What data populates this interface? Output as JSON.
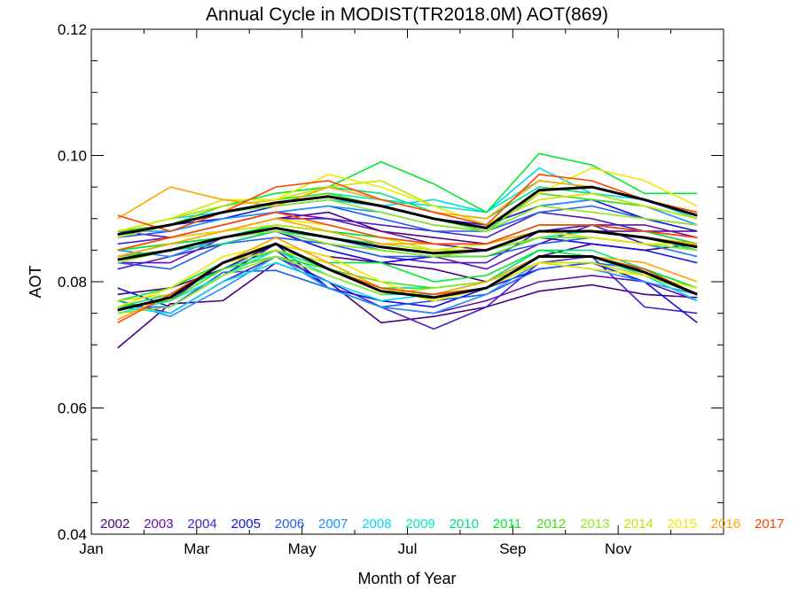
{
  "chart_data": {
    "type": "line",
    "title": "Annual Cycle in MODIST(TR2018.0M) AOT(869)",
    "xlabel": "Month of Year",
    "ylabel": "AOT",
    "xlim": [
      1,
      13
    ],
    "ylim": [
      0.04,
      0.12
    ],
    "x": [
      1.5,
      2.5,
      3.5,
      4.5,
      5.5,
      6.5,
      7.5,
      8.5,
      9.5,
      10.5,
      11.5,
      12.5
    ],
    "x_tick_labels": [
      {
        "x": 1,
        "label": "Jan"
      },
      {
        "x": 3,
        "label": "Mar"
      },
      {
        "x": 5,
        "label": "May"
      },
      {
        "x": 7,
        "label": "Jul"
      },
      {
        "x": 9,
        "label": "Sep"
      },
      {
        "x": 11,
        "label": "Nov"
      }
    ],
    "y_ticks": [
      0.04,
      0.06,
      0.08,
      0.1,
      0.12
    ],
    "y_tick_labels": [
      "0.04",
      "0.06",
      "0.08",
      "0.10",
      "0.12"
    ],
    "grid": false,
    "legend_position": "bottom",
    "series": [
      {
        "name": "2002",
        "color": "#4b0082",
        "lines": [
          [
            0.0695,
            0.0765,
            0.077,
            0.083,
            0.08,
            0.0735,
            0.0745,
            0.076,
            0.0785,
            0.0795,
            0.078,
            0.0775
          ],
          [
            0.078,
            0.079,
            0.082,
            0.086,
            0.084,
            0.083,
            0.082,
            0.08,
            0.084,
            0.086,
            0.085,
            0.086
          ],
          [
            0.085,
            0.087,
            0.088,
            0.09,
            0.091,
            0.088,
            0.087,
            0.086,
            0.088,
            0.088,
            0.088,
            0.088
          ]
        ]
      },
      {
        "name": "2003",
        "color": "#6a0dad",
        "lines": [
          [
            0.076,
            0.077,
            0.083,
            0.085,
            0.079,
            0.076,
            0.075,
            0.077,
            0.08,
            0.081,
            0.08,
            0.077
          ],
          [
            0.083,
            0.083,
            0.087,
            0.088,
            0.085,
            0.083,
            0.084,
            0.082,
            0.086,
            0.089,
            0.088,
            0.086
          ],
          [
            0.088,
            0.087,
            0.089,
            0.091,
            0.09,
            0.088,
            0.086,
            0.085,
            0.088,
            0.089,
            0.089,
            0.087
          ]
        ]
      },
      {
        "name": "2004",
        "color": "#4b1fc8",
        "lines": [
          [
            0.077,
            0.075,
            0.08,
            0.084,
            0.08,
            0.076,
            0.0725,
            0.076,
            0.083,
            0.084,
            0.076,
            0.075
          ],
          [
            0.082,
            0.084,
            0.086,
            0.088,
            0.086,
            0.084,
            0.083,
            0.083,
            0.088,
            0.089,
            0.086,
            0.084
          ],
          [
            0.086,
            0.087,
            0.088,
            0.09,
            0.09,
            0.089,
            0.088,
            0.087,
            0.091,
            0.09,
            0.088,
            0.087
          ]
        ]
      },
      {
        "name": "2005",
        "color": "#1010e0",
        "lines": [
          [
            0.079,
            0.076,
            0.081,
            0.086,
            0.079,
            0.077,
            0.076,
            0.079,
            0.082,
            0.083,
            0.08,
            0.0735
          ],
          [
            0.084,
            0.085,
            0.086,
            0.088,
            0.085,
            0.083,
            0.084,
            0.085,
            0.087,
            0.086,
            0.085,
            0.083
          ],
          [
            0.088,
            0.089,
            0.09,
            0.092,
            0.093,
            0.092,
            0.09,
            0.089,
            0.092,
            0.093,
            0.09,
            0.088
          ]
        ]
      },
      {
        "name": "2006",
        "color": "#1e5ef0",
        "lines": [
          [
            0.076,
            0.076,
            0.0815,
            0.0818,
            0.079,
            0.076,
            0.077,
            0.078,
            0.082,
            0.083,
            0.082,
            0.079
          ],
          [
            0.083,
            0.082,
            0.086,
            0.087,
            0.086,
            0.084,
            0.084,
            0.084,
            0.086,
            0.087,
            0.086,
            0.085
          ],
          [
            0.087,
            0.088,
            0.09,
            0.091,
            0.092,
            0.09,
            0.088,
            0.088,
            0.091,
            0.092,
            0.09,
            0.089
          ]
        ]
      },
      {
        "name": "2007",
        "color": "#1e90ff",
        "lines": [
          [
            0.077,
            0.0745,
            0.079,
            0.084,
            0.079,
            0.076,
            0.075,
            0.078,
            0.083,
            0.082,
            0.08,
            0.078
          ],
          [
            0.085,
            0.084,
            0.087,
            0.088,
            0.087,
            0.085,
            0.084,
            0.085,
            0.088,
            0.087,
            0.086,
            0.084
          ],
          [
            0.088,
            0.088,
            0.09,
            0.091,
            0.092,
            0.091,
            0.089,
            0.088,
            0.092,
            0.093,
            0.092,
            0.089
          ]
        ]
      },
      {
        "name": "2008",
        "color": "#00d8f0",
        "lines": [
          [
            0.076,
            0.075,
            0.08,
            0.083,
            0.08,
            0.077,
            0.078,
            0.079,
            0.084,
            0.084,
            0.081,
            0.077
          ],
          [
            0.084,
            0.086,
            0.087,
            0.089,
            0.088,
            0.087,
            0.085,
            0.086,
            0.088,
            0.088,
            0.087,
            0.085
          ],
          [
            0.088,
            0.09,
            0.091,
            0.092,
            0.093,
            0.092,
            0.093,
            0.091,
            0.098,
            0.094,
            0.093,
            0.09
          ]
        ]
      },
      {
        "name": "2009",
        "color": "#00e8c0",
        "lines": [
          [
            0.075,
            0.077,
            0.081,
            0.085,
            0.081,
            0.078,
            0.078,
            0.08,
            0.084,
            0.084,
            0.081,
            0.078
          ],
          [
            0.085,
            0.086,
            0.087,
            0.089,
            0.088,
            0.086,
            0.085,
            0.085,
            0.087,
            0.088,
            0.087,
            0.086
          ],
          [
            0.088,
            0.09,
            0.092,
            0.093,
            0.094,
            0.093,
            0.092,
            0.091,
            0.096,
            0.095,
            0.093,
            0.091
          ]
        ]
      },
      {
        "name": "2010",
        "color": "#00e080",
        "lines": [
          [
            0.076,
            0.078,
            0.082,
            0.085,
            0.082,
            0.079,
            0.079,
            0.08,
            0.085,
            0.085,
            0.082,
            0.079
          ],
          [
            0.084,
            0.085,
            0.086,
            0.088,
            0.087,
            0.086,
            0.085,
            0.085,
            0.088,
            0.088,
            0.087,
            0.085
          ],
          [
            0.088,
            0.09,
            0.093,
            0.092,
            0.095,
            0.094,
            0.091,
            0.09,
            0.095,
            0.094,
            0.092,
            0.09
          ]
        ]
      },
      {
        "name": "2011",
        "color": "#00e830",
        "lines": [
          [
            0.077,
            0.079,
            0.083,
            0.085,
            0.083,
            0.083,
            0.08,
            0.081,
            0.085,
            0.084,
            0.082,
            0.079
          ],
          [
            0.085,
            0.086,
            0.087,
            0.089,
            0.088,
            0.087,
            0.086,
            0.086,
            0.089,
            0.089,
            0.088,
            0.086
          ],
          [
            0.088,
            0.09,
            0.092,
            0.094,
            0.095,
            0.099,
            0.0955,
            0.091,
            0.1003,
            0.0985,
            0.094,
            0.094
          ]
        ]
      },
      {
        "name": "2012",
        "color": "#40e010",
        "lines": [
          [
            0.076,
            0.077,
            0.082,
            0.084,
            0.082,
            0.08,
            0.079,
            0.08,
            0.084,
            0.084,
            0.082,
            0.078
          ],
          [
            0.084,
            0.085,
            0.087,
            0.088,
            0.086,
            0.085,
            0.084,
            0.084,
            0.087,
            0.087,
            0.086,
            0.085
          ],
          [
            0.088,
            0.089,
            0.092,
            0.093,
            0.094,
            0.092,
            0.09,
            0.088,
            0.094,
            0.093,
            0.092,
            0.09
          ]
        ]
      },
      {
        "name": "2013",
        "color": "#90e820",
        "lines": [
          [
            0.075,
            0.076,
            0.081,
            0.084,
            0.081,
            0.078,
            0.079,
            0.08,
            0.083,
            0.083,
            0.081,
            0.078
          ],
          [
            0.083,
            0.085,
            0.087,
            0.088,
            0.086,
            0.085,
            0.084,
            0.085,
            0.087,
            0.087,
            0.086,
            0.085
          ],
          [
            0.087,
            0.089,
            0.091,
            0.092,
            0.093,
            0.091,
            0.089,
            0.088,
            0.092,
            0.091,
            0.09,
            0.089
          ]
        ]
      },
      {
        "name": "2014",
        "color": "#d0e000",
        "lines": [
          [
            0.077,
            0.078,
            0.083,
            0.085,
            0.083,
            0.079,
            0.077,
            0.079,
            0.083,
            0.083,
            0.081,
            0.079
          ],
          [
            0.084,
            0.086,
            0.088,
            0.089,
            0.088,
            0.086,
            0.085,
            0.085,
            0.088,
            0.088,
            0.087,
            0.086
          ],
          [
            0.088,
            0.09,
            0.092,
            0.093,
            0.095,
            0.096,
            0.092,
            0.089,
            0.093,
            0.094,
            0.092,
            0.09
          ]
        ]
      },
      {
        "name": "2015",
        "color": "#f0e800",
        "lines": [
          [
            0.076,
            0.079,
            0.084,
            0.086,
            0.084,
            0.08,
            0.077,
            0.079,
            0.083,
            0.082,
            0.081,
            0.079
          ],
          [
            0.085,
            0.087,
            0.088,
            0.09,
            0.089,
            0.087,
            0.085,
            0.086,
            0.088,
            0.087,
            0.086,
            0.086
          ],
          [
            0.088,
            0.09,
            0.093,
            0.093,
            0.097,
            0.095,
            0.092,
            0.089,
            0.094,
            0.098,
            0.096,
            0.092
          ]
        ]
      },
      {
        "name": "2016",
        "color": "#ffa500",
        "lines": [
          [
            0.074,
            0.078,
            0.083,
            0.087,
            0.083,
            0.079,
            0.078,
            0.08,
            0.084,
            0.084,
            0.083,
            0.08
          ],
          [
            0.084,
            0.086,
            0.088,
            0.09,
            0.088,
            0.086,
            0.086,
            0.086,
            0.088,
            0.088,
            0.087,
            0.086
          ],
          [
            0.09,
            0.095,
            0.093,
            0.092,
            0.095,
            0.093,
            0.091,
            0.09,
            0.096,
            0.095,
            0.093,
            0.091
          ]
        ]
      },
      {
        "name": "2017",
        "color": "#ff4500",
        "lines": [
          [
            0.0735,
            0.078,
            0.083,
            0.086,
            0.082,
            0.079,
            0.078,
            0.079,
            0.084,
            0.084,
            0.082,
            0.078
          ],
          [
            0.085,
            0.087,
            0.089,
            0.091,
            0.089,
            0.087,
            0.086,
            0.086,
            0.089,
            0.089,
            0.088,
            0.087
          ],
          [
            0.0905,
            0.088,
            0.091,
            0.095,
            0.096,
            0.093,
            0.091,
            0.089,
            0.097,
            0.096,
            0.093,
            0.091
          ]
        ]
      }
    ],
    "mean_lines": {
      "color": "#000000",
      "lines": [
        [
          0.0755,
          0.0775,
          0.083,
          0.086,
          0.082,
          0.0785,
          0.0775,
          0.079,
          0.084,
          0.084,
          0.0815,
          0.078
        ],
        [
          0.0835,
          0.085,
          0.087,
          0.0885,
          0.087,
          0.0855,
          0.0845,
          0.085,
          0.088,
          0.088,
          0.087,
          0.0855
        ],
        [
          0.0875,
          0.089,
          0.091,
          0.0925,
          0.0935,
          0.092,
          0.09,
          0.0885,
          0.0945,
          0.095,
          0.093,
          0.0905
        ]
      ]
    }
  }
}
